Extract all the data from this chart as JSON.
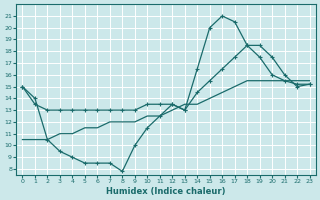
{
  "xlabel": "Humidex (Indice chaleur)",
  "background_color": "#cce8ea",
  "grid_color": "#b0d0d3",
  "line_color": "#1a6b6b",
  "xlim": [
    -0.5,
    23.5
  ],
  "ylim": [
    7.5,
    22.0
  ],
  "xticks": [
    0,
    1,
    2,
    3,
    4,
    5,
    6,
    7,
    8,
    9,
    10,
    11,
    12,
    13,
    14,
    15,
    16,
    17,
    18,
    19,
    20,
    21,
    22,
    23
  ],
  "yticks": [
    8,
    9,
    10,
    11,
    12,
    13,
    14,
    15,
    16,
    17,
    18,
    19,
    20,
    21
  ],
  "line_max_x": [
    0,
    1,
    2,
    3,
    4,
    5,
    6,
    7,
    8,
    9,
    10,
    11,
    12,
    13,
    14,
    15,
    16,
    17,
    18,
    19,
    20,
    21,
    22,
    23
  ],
  "line_max_y": [
    15.0,
    14.0,
    10.5,
    9.5,
    9.0,
    8.5,
    8.5,
    8.5,
    7.8,
    10.0,
    11.5,
    12.5,
    13.5,
    13.0,
    16.5,
    20.0,
    21.0,
    20.5,
    18.5,
    18.5,
    17.5,
    16.0,
    15.0,
    15.2
  ],
  "line_avg_x": [
    0,
    1,
    2,
    3,
    4,
    5,
    6,
    7,
    8,
    9,
    10,
    11,
    12,
    13,
    14,
    15,
    16,
    17,
    18,
    19,
    20,
    21,
    22,
    23
  ],
  "line_avg_y": [
    15.0,
    13.5,
    13.0,
    13.0,
    13.0,
    13.0,
    13.0,
    13.0,
    13.0,
    13.0,
    13.5,
    13.5,
    13.5,
    13.0,
    14.5,
    15.5,
    16.5,
    17.5,
    18.5,
    17.5,
    16.0,
    15.5,
    15.2,
    15.2
  ],
  "line_min_x": [
    0,
    1,
    2,
    3,
    4,
    5,
    6,
    7,
    8,
    9,
    10,
    11,
    12,
    13,
    14,
    15,
    16,
    17,
    18,
    19,
    20,
    21,
    22,
    23
  ],
  "line_min_y": [
    10.5,
    10.5,
    10.5,
    11.0,
    11.0,
    11.5,
    11.5,
    12.0,
    12.0,
    12.0,
    12.5,
    12.5,
    13.0,
    13.5,
    13.5,
    14.0,
    14.5,
    15.0,
    15.5,
    15.5,
    15.5,
    15.5,
    15.5,
    15.5
  ]
}
